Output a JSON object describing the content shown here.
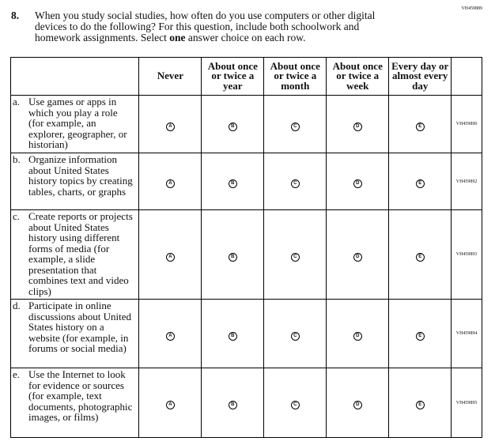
{
  "form_id": "VH459889",
  "question": {
    "number": "8.",
    "text_before": "When you study social studies, how often do you use computers or other digital devices to do the following? For this question, include both schoolwork and homework assignments. Select ",
    "emphasis": "one",
    "text_after": " answer choice on each row."
  },
  "columns": [
    "Never",
    "About once or twice a year",
    "About once or twice a month",
    "About once or twice a week",
    "Every day or almost every day"
  ],
  "bubble_letters": [
    "A",
    "B",
    "C",
    "D",
    "E"
  ],
  "rows": [
    {
      "letter": "a.",
      "text": "Use games or apps in which you play a role (for example, an explorer, geographer, or historian)",
      "id": "VH459890"
    },
    {
      "letter": "b.",
      "text": "Organize information about United States history topics by creating tables, charts, or graphs",
      "id": "VH459892"
    },
    {
      "letter": "c.",
      "text": "Create reports or projects about United States history using different forms of media (for example, a slide presentation that combines text and video clips)",
      "id": "VH459893"
    },
    {
      "letter": "d.",
      "text": "Participate in online discussions about United States history on a website (for example, in forums or social media)",
      "id": "VH459894"
    },
    {
      "letter": "e.",
      "text": "Use the Internet to look for evidence or sources (for example, text documents, photographic images, or films)",
      "id": "VH459895"
    }
  ]
}
